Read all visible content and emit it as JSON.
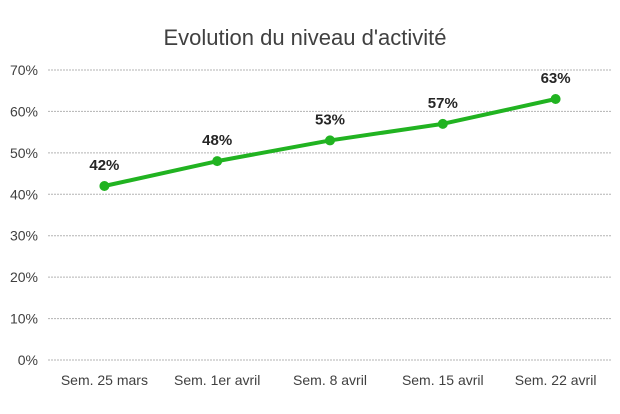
{
  "chart_data": {
    "type": "line",
    "title": "Evolution du niveau d'activité",
    "xlabel": "",
    "ylabel": "",
    "categories": [
      "Sem. 25 mars",
      "Sem. 1er avril",
      "Sem. 8 avril",
      "Sem. 15 avril",
      "Sem. 22 avril"
    ],
    "series": [
      {
        "values": [
          42,
          48,
          53,
          57,
          63
        ],
        "color": "#21b321"
      }
    ],
    "data_labels": [
      "42%",
      "48%",
      "53%",
      "57%",
      "63%"
    ],
    "ylim": [
      0,
      70
    ],
    "yticks": [
      0,
      10,
      20,
      30,
      40,
      50,
      60,
      70
    ],
    "ytick_labels": [
      "0%",
      "10%",
      "20%",
      "30%",
      "40%",
      "50%",
      "60%",
      "70%"
    ],
    "grid": true,
    "legend": "none"
  }
}
